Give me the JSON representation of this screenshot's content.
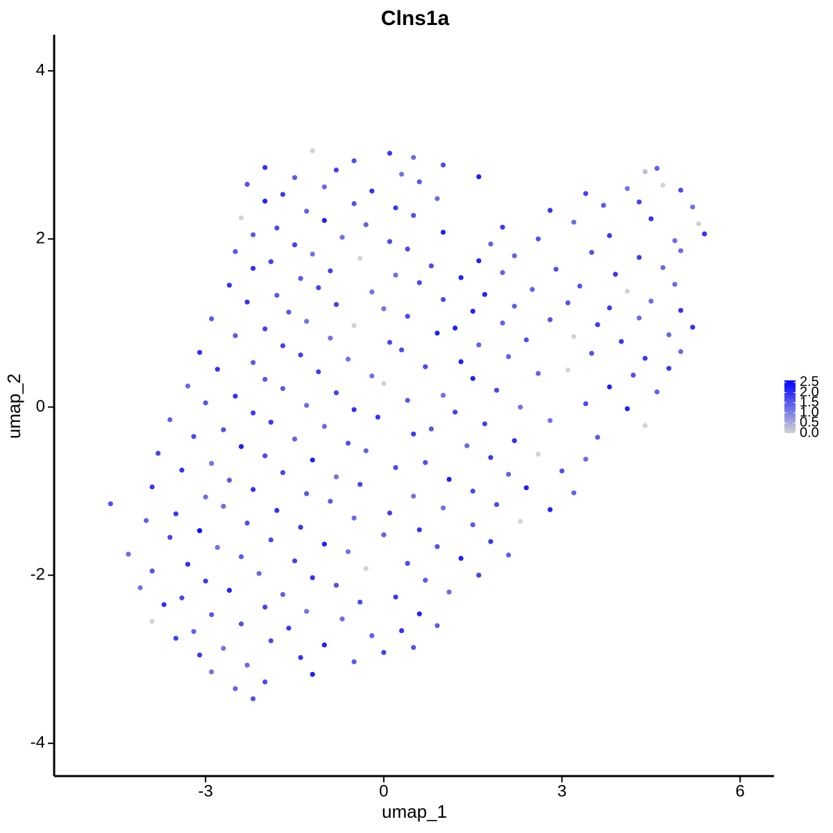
{
  "chart_data": {
    "type": "scatter",
    "title": "Clns1a",
    "x_label": "umap_1",
    "y_label": "umap_2",
    "xlim": [
      -5.55,
      6.57
    ],
    "ylim": [
      -4.39,
      4.43
    ],
    "xticks": [
      -3,
      0,
      3,
      6
    ],
    "yticks": [
      -4,
      -2,
      0,
      2,
      4
    ],
    "grid": false,
    "x": [
      -1.2,
      -0.5,
      0.1,
      0.5,
      -2.0,
      -1.5,
      -0.8,
      0.3,
      1.0,
      1.6,
      4.4,
      4.6,
      -2.3,
      -1.7,
      -1.0,
      -0.2,
      0.6,
      3.4,
      4.1,
      4.7,
      5.0,
      -2.0,
      -1.3,
      -0.5,
      0.2,
      0.9,
      2.8,
      3.7,
      4.3,
      5.2,
      -2.4,
      -1.8,
      -1.0,
      -0.3,
      0.5,
      2.0,
      3.2,
      4.5,
      5.3,
      -2.2,
      -1.5,
      -0.7,
      0.1,
      1.0,
      1.8,
      2.6,
      3.8,
      4.9,
      5.4,
      -2.5,
      -1.9,
      -1.2,
      -0.4,
      0.4,
      1.6,
      2.2,
      3.5,
      4.3,
      5.0,
      -2.2,
      -1.4,
      -0.9,
      0.2,
      0.8,
      1.3,
      2.0,
      2.9,
      3.9,
      4.7,
      -2.6,
      -1.8,
      -1.1,
      -0.2,
      0.6,
      1.7,
      2.5,
      3.3,
      4.1,
      4.9,
      -2.3,
      -1.6,
      -0.8,
      0.0,
      1.0,
      1.5,
      2.2,
      3.1,
      3.8,
      4.5,
      5.0,
      -2.9,
      -2.0,
      -1.3,
      -0.5,
      0.4,
      1.2,
      2.0,
      2.8,
      3.6,
      4.3,
      5.2,
      -2.5,
      -1.7,
      -0.9,
      0.1,
      0.9,
      1.6,
      2.4,
      3.2,
      4.0,
      4.8,
      -3.1,
      -2.2,
      -1.4,
      -0.6,
      0.3,
      1.3,
      2.1,
      3.5,
      4.4,
      5.0,
      -2.8,
      -2.0,
      -1.1,
      -0.2,
      0.7,
      1.5,
      2.6,
      3.1,
      4.2,
      4.8,
      -3.3,
      -2.5,
      -1.7,
      -0.8,
      0.0,
      1.0,
      1.9,
      3.8,
      4.6,
      -3.0,
      -2.2,
      -1.3,
      -0.5,
      0.4,
      1.2,
      2.3,
      3.4,
      4.1,
      -3.6,
      -2.7,
      -1.9,
      -1.0,
      -0.1,
      0.8,
      1.7,
      2.8,
      4.4,
      -3.2,
      -2.4,
      -1.5,
      -0.6,
      0.5,
      1.4,
      2.2,
      3.6,
      -3.8,
      -2.9,
      -2.0,
      -1.2,
      -0.3,
      0.7,
      1.8,
      2.6,
      3.4,
      -3.4,
      -2.6,
      -1.7,
      -0.8,
      0.2,
      1.1,
      2.1,
      3.0,
      -3.9,
      -3.0,
      -2.2,
      -1.3,
      -0.4,
      0.5,
      1.5,
      2.4,
      3.2,
      -4.6,
      -3.5,
      -2.7,
      -1.8,
      -0.9,
      0.1,
      1.0,
      1.9,
      2.8,
      -4.0,
      -3.1,
      -2.3,
      -1.4,
      -0.5,
      0.6,
      1.5,
      2.3,
      -3.6,
      -2.8,
      -1.9,
      -1.0,
      0.0,
      0.9,
      1.8,
      -4.3,
      -3.3,
      -2.4,
      -1.5,
      -0.6,
      0.4,
      1.3,
      2.1,
      -3.9,
      -3.0,
      -2.1,
      -1.2,
      -0.3,
      0.7,
      1.6,
      -4.1,
      -3.4,
      -2.6,
      -1.7,
      -0.8,
      0.2,
      1.1,
      -3.7,
      -2.9,
      -2.0,
      -1.3,
      -0.4,
      0.6,
      -3.9,
      -3.2,
      -2.4,
      -1.6,
      -0.7,
      0.3,
      0.9,
      -3.5,
      -2.7,
      -1.9,
      -1.0,
      -0.2,
      0.5,
      -3.1,
      -2.3,
      -1.4,
      -0.5,
      0.0,
      -2.9,
      -2.0,
      -1.2,
      -2.5,
      -2.2
    ],
    "y": [
      3.05,
      2.93,
      3.02,
      2.97,
      2.85,
      2.73,
      2.82,
      2.77,
      2.88,
      2.74,
      2.8,
      2.84,
      2.65,
      2.53,
      2.62,
      2.57,
      2.68,
      2.54,
      2.6,
      2.64,
      2.58,
      2.45,
      2.33,
      2.42,
      2.37,
      2.48,
      2.34,
      2.4,
      2.44,
      2.38,
      2.25,
      2.13,
      2.22,
      2.17,
      2.28,
      2.14,
      2.2,
      2.24,
      2.18,
      2.05,
      1.93,
      2.02,
      1.97,
      2.08,
      1.94,
      2.0,
      2.04,
      1.98,
      2.06,
      1.85,
      1.73,
      1.82,
      1.77,
      1.88,
      1.74,
      1.8,
      1.84,
      1.78,
      1.86,
      1.65,
      1.53,
      1.62,
      1.57,
      1.68,
      1.54,
      1.6,
      1.64,
      1.58,
      1.66,
      1.45,
      1.33,
      1.42,
      1.37,
      1.48,
      1.34,
      1.4,
      1.44,
      1.38,
      1.46,
      1.25,
      1.13,
      1.22,
      1.17,
      1.28,
      1.14,
      1.2,
      1.24,
      1.18,
      1.26,
      1.15,
      1.05,
      0.93,
      1.02,
      0.97,
      1.08,
      0.94,
      1.0,
      1.04,
      0.98,
      1.06,
      0.95,
      0.85,
      0.73,
      0.82,
      0.77,
      0.88,
      0.74,
      0.8,
      0.84,
      0.78,
      0.86,
      0.65,
      0.53,
      0.62,
      0.57,
      0.68,
      0.54,
      0.6,
      0.64,
      0.58,
      0.66,
      0.45,
      0.33,
      0.42,
      0.37,
      0.48,
      0.34,
      0.4,
      0.44,
      0.38,
      0.46,
      0.25,
      0.13,
      0.22,
      0.17,
      0.28,
      0.14,
      0.2,
      0.24,
      0.18,
      0.05,
      -0.07,
      0.02,
      -0.03,
      0.08,
      -0.06,
      0.0,
      0.04,
      -0.02,
      -0.15,
      -0.27,
      -0.18,
      -0.23,
      -0.12,
      -0.26,
      -0.2,
      -0.16,
      -0.22,
      -0.35,
      -0.47,
      -0.38,
      -0.43,
      -0.32,
      -0.46,
      -0.4,
      -0.36,
      -0.55,
      -0.67,
      -0.58,
      -0.63,
      -0.52,
      -0.66,
      -0.6,
      -0.56,
      -0.62,
      -0.75,
      -0.87,
      -0.78,
      -0.83,
      -0.72,
      -0.86,
      -0.8,
      -0.76,
      -0.95,
      -1.07,
      -0.98,
      -1.03,
      -0.92,
      -1.06,
      -1.0,
      -0.96,
      -1.02,
      -1.15,
      -1.27,
      -1.18,
      -1.23,
      -1.12,
      -1.26,
      -1.2,
      -1.16,
      -1.22,
      -1.35,
      -1.47,
      -1.38,
      -1.43,
      -1.32,
      -1.46,
      -1.4,
      -1.36,
      -1.55,
      -1.67,
      -1.58,
      -1.63,
      -1.52,
      -1.66,
      -1.6,
      -1.75,
      -1.87,
      -1.78,
      -1.83,
      -1.72,
      -1.86,
      -1.8,
      -1.76,
      -1.95,
      -2.07,
      -1.98,
      -2.03,
      -1.92,
      -2.06,
      -2.0,
      -2.15,
      -2.27,
      -2.18,
      -2.23,
      -2.12,
      -2.26,
      -2.2,
      -2.35,
      -2.47,
      -2.38,
      -2.43,
      -2.32,
      -2.46,
      -2.55,
      -2.67,
      -2.58,
      -2.63,
      -2.52,
      -2.66,
      -2.6,
      -2.75,
      -2.87,
      -2.78,
      -2.83,
      -2.72,
      -2.86,
      -2.95,
      -3.07,
      -2.98,
      -3.03,
      -2.92,
      -3.15,
      -3.27,
      -3.18,
      -3.35,
      -3.47
    ],
    "values": [
      0,
      1.6,
      1.9,
      1.3,
      2.0,
      1.5,
      1.8,
      1.2,
      1.7,
      2.2,
      0.3,
      1.4,
      1.6,
      1.9,
      1.3,
      2.0,
      1.5,
      1.8,
      1.2,
      0,
      1.7,
      2.2,
      1.4,
      1.6,
      1.9,
      1.3,
      2.0,
      1.5,
      1.8,
      1.2,
      0,
      1.7,
      2.2,
      1.4,
      1.6,
      1.9,
      1.3,
      2.0,
      0,
      1.5,
      1.8,
      1.2,
      1.7,
      2.2,
      1.4,
      1.6,
      1.9,
      1.3,
      2.0,
      1.5,
      1.8,
      1.2,
      0,
      1.7,
      2.2,
      1.4,
      1.6,
      1.9,
      1.3,
      2.0,
      1.5,
      1.8,
      1.2,
      1.7,
      2.2,
      1.4,
      1.6,
      1.9,
      1.3,
      2.0,
      1.5,
      1.8,
      1.2,
      1.7,
      2.2,
      1.4,
      1.6,
      0,
      1.3,
      2.0,
      1.5,
      1.8,
      1.2,
      1.7,
      2.2,
      1.4,
      1.6,
      1.9,
      1.3,
      2.0,
      1.5,
      1.8,
      1.2,
      0,
      1.7,
      2.2,
      1.4,
      1.6,
      1.9,
      1.3,
      2.0,
      1.5,
      1.8,
      1.2,
      1.7,
      2.2,
      1.4,
      1.6,
      0,
      1.9,
      1.3,
      2.0,
      1.5,
      1.8,
      1.2,
      1.7,
      2.2,
      1.4,
      1.6,
      1.9,
      1.3,
      2.0,
      1.5,
      1.8,
      1.2,
      1.7,
      2.2,
      1.4,
      0,
      1.6,
      1.9,
      1.3,
      2.0,
      1.5,
      1.8,
      0,
      1.2,
      1.7,
      2.2,
      1.4,
      1.6,
      1.9,
      1.3,
      2.0,
      1.5,
      1.8,
      1.2,
      1.7,
      2.2,
      1.4,
      1.6,
      1.9,
      1.3,
      2.0,
      1.5,
      1.8,
      1.2,
      0,
      1.7,
      2.2,
      1.4,
      1.6,
      1.9,
      1.3,
      2.0,
      1.5,
      1.8,
      1.2,
      1.7,
      2.2,
      1.4,
      1.6,
      1.9,
      0,
      1.3,
      2.0,
      1.5,
      1.8,
      1.2,
      1.7,
      2.2,
      1.4,
      1.6,
      1.9,
      1.3,
      2.0,
      1.5,
      1.8,
      1.2,
      1.7,
      2.2,
      1.4,
      1.6,
      1.9,
      1.3,
      2.0,
      1.5,
      1.8,
      1.2,
      1.7,
      2.2,
      1.4,
      2.6,
      1.6,
      1.9,
      1.3,
      2.0,
      1.5,
      0,
      1.8,
      1.2,
      1.7,
      2.2,
      1.4,
      1.6,
      1.9,
      1.3,
      2.0,
      1.5,
      1.8,
      1.2,
      1.7,
      2.2,
      1.4,
      1.6,
      1.9,
      1.3,
      2.0,
      0,
      1.5,
      1.8,
      1.2,
      1.7,
      2.2,
      1.4,
      1.6,
      1.9,
      1.3,
      2.0,
      1.5,
      1.8,
      1.2,
      1.7,
      2.2,
      0,
      1.4,
      1.6,
      1.9,
      1.3,
      2.0,
      1.5,
      1.8,
      1.2,
      1.7,
      2.2,
      1.4,
      1.6,
      1.9,
      1.3,
      2.0,
      1.5,
      1.8,
      1.2,
      1.7,
      2.2,
      1.4,
      1.6
    ],
    "colorbar": {
      "lim": [
        0,
        2.6
      ],
      "colors": [
        "#d3d3d3",
        "#0000ff"
      ],
      "ticks": [
        {
          "value": 0,
          "label": "0.0"
        },
        0.5,
        {
          "value": 1,
          "label": "1.0"
        },
        1.5,
        {
          "value": 2,
          "label": "2.0"
        },
        2.5
      ]
    }
  }
}
